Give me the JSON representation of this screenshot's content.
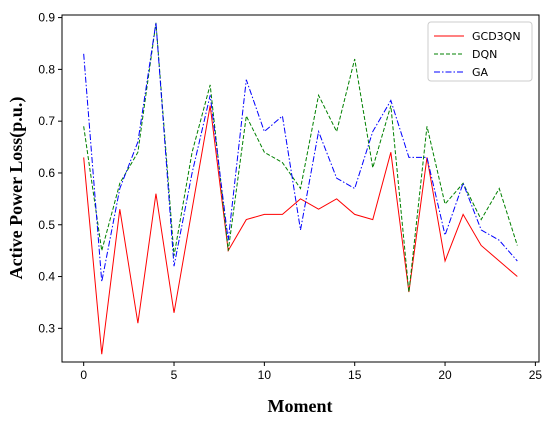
{
  "chart_data": {
    "type": "line",
    "xlabel": "Moment",
    "ylabel": "Active Power Loss(p.u.)",
    "xlim": [
      -1.2,
      25.2
    ],
    "ylim": [
      0.235,
      0.905
    ],
    "xticks": [
      0,
      5,
      10,
      15,
      20,
      25
    ],
    "yticks": [
      0.3,
      0.4,
      0.5,
      0.6,
      0.7,
      0.8,
      0.9
    ],
    "grid": false,
    "legend_position": "top-right",
    "x": [
      0,
      1,
      2,
      3,
      4,
      5,
      6,
      7,
      8,
      9,
      10,
      11,
      12,
      13,
      14,
      15,
      16,
      17,
      18,
      19,
      20,
      21,
      22,
      23,
      24
    ],
    "series": [
      {
        "name": "GCD3QN",
        "color": "#ff0000",
        "dash": "solid",
        "values": [
          0.63,
          0.25,
          0.53,
          0.31,
          0.56,
          0.33,
          0.53,
          0.73,
          0.45,
          0.51,
          0.52,
          0.52,
          0.55,
          0.53,
          0.55,
          0.52,
          0.51,
          0.64,
          0.37,
          0.63,
          0.43,
          0.52,
          0.46,
          0.43,
          0.4
        ]
      },
      {
        "name": "DQN",
        "color": "#008000",
        "dash": "dashed",
        "values": [
          0.69,
          0.45,
          0.58,
          0.64,
          0.89,
          0.44,
          0.64,
          0.77,
          0.45,
          0.71,
          0.64,
          0.62,
          0.57,
          0.75,
          0.68,
          0.82,
          0.61,
          0.73,
          0.37,
          0.69,
          0.54,
          0.58,
          0.51,
          0.57,
          0.46
        ]
      },
      {
        "name": "GA",
        "color": "#0000ff",
        "dash": "dashdot",
        "values": [
          0.83,
          0.39,
          0.57,
          0.66,
          0.89,
          0.42,
          0.6,
          0.75,
          0.47,
          0.78,
          0.68,
          0.71,
          0.49,
          0.68,
          0.59,
          0.57,
          0.68,
          0.74,
          0.63,
          0.63,
          0.48,
          0.58,
          0.49,
          0.47,
          0.43
        ]
      }
    ]
  }
}
